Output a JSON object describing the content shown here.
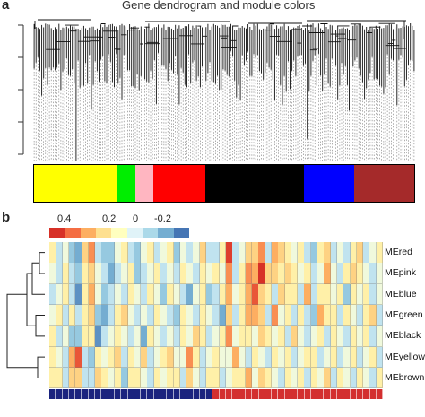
{
  "panel_a": {
    "label": "a",
    "title": "Gene dendrogram and module colors",
    "modules": [
      {
        "name": "yellow",
        "color": "#ffff00",
        "width_frac": 0.258
      },
      {
        "name": "green",
        "color": "#00ee00",
        "width_frac": 0.055
      },
      {
        "name": "pink",
        "color": "#ffb6c1",
        "width_frac": 0.055
      },
      {
        "name": "red",
        "color": "#ff0000",
        "width_frac": 0.161
      },
      {
        "name": "black",
        "color": "#000000",
        "width_frac": 0.306
      },
      {
        "name": "blue",
        "color": "#0000ff",
        "width_frac": 0.155
      },
      {
        "name": "brown",
        "color": "#a52a2a",
        "width_frac": 0.186
      }
    ]
  },
  "panel_b": {
    "label": "b",
    "color_key": {
      "tick_labels": [
        "0.4",
        "0.2",
        "0",
        "-0.2"
      ],
      "colors": [
        "#d73027",
        "#f46d43",
        "#fdae61",
        "#fee090",
        "#ffffbf",
        "#e0f3f8",
        "#abd9e9",
        "#74add1",
        "#4575b4"
      ]
    },
    "row_labels": [
      "MEred",
      "MEpink",
      "MEblue",
      "MEgreen",
      "MEblack",
      "MEyellow",
      "MEbrown"
    ],
    "sample_groups": [
      {
        "color": "#1a237e",
        "count": 25
      },
      {
        "color": "#d32f2f",
        "count": 26
      }
    ]
  },
  "chart_data": {
    "type": "heatmap",
    "title": "",
    "rows": [
      "MEred",
      "MEpink",
      "MEblue",
      "MEgreen",
      "MEblack",
      "MEyellow",
      "MEbrown"
    ],
    "n_columns": 51,
    "value_range": [
      -0.3,
      0.45
    ],
    "values": [
      [
        0.05,
        -0.05,
        0.0,
        -0.1,
        -0.15,
        0.1,
        0.2,
        -0.05,
        -0.1,
        -0.1,
        0.0,
        0.05,
        -0.05,
        -0.1,
        0.0,
        0.05,
        -0.05,
        0.0,
        0.05,
        -0.1,
        0.0,
        -0.05,
        0.0,
        0.1,
        -0.05,
        -0.05,
        0.05,
        0.35,
        -0.05,
        0.0,
        0.1,
        0.1,
        0.2,
        -0.05,
        0.15,
        0.1,
        0.05,
        0.0,
        0.05,
        -0.05,
        -0.1,
        0.05,
        0.1,
        -0.05,
        0.0,
        -0.05,
        0.05,
        0.1,
        -0.05,
        0.0,
        0.05
      ],
      [
        0.0,
        -0.05,
        0.05,
        -0.05,
        -0.1,
        0.05,
        0.1,
        0.0,
        -0.05,
        -0.15,
        -0.05,
        0.0,
        0.05,
        -0.1,
        -0.05,
        0.0,
        0.05,
        -0.05,
        0.0,
        -0.05,
        0.05,
        0.0,
        -0.05,
        0.05,
        0.0,
        0.05,
        0.0,
        0.2,
        -0.05,
        0.05,
        0.2,
        0.15,
        0.4,
        0.1,
        0.1,
        0.05,
        0.1,
        0.05,
        0.0,
        0.05,
        -0.05,
        0.0,
        0.15,
        0.0,
        -0.05,
        0.05,
        0.1,
        0.05,
        0.0,
        -0.05,
        0.0
      ],
      [
        -0.05,
        0.0,
        0.05,
        -0.05,
        -0.2,
        0.05,
        0.15,
        0.0,
        -0.1,
        -0.05,
        0.0,
        -0.05,
        0.05,
        0.0,
        -0.05,
        0.05,
        0.0,
        -0.1,
        0.05,
        0.0,
        -0.05,
        -0.15,
        0.0,
        0.05,
        -0.1,
        -0.05,
        0.05,
        0.15,
        0.0,
        0.05,
        0.15,
        0.3,
        0.1,
        0.05,
        -0.05,
        0.1,
        0.05,
        0.05,
        -0.05,
        0.15,
        -0.05,
        0.05,
        0.05,
        0.0,
        0.05,
        -0.1,
        0.05,
        0.0,
        0.05,
        -0.05,
        0.0
      ],
      [
        0.0,
        0.05,
        -0.05,
        0.05,
        -0.05,
        0.05,
        0.1,
        -0.1,
        -0.15,
        -0.05,
        0.05,
        0.1,
        0.0,
        -0.05,
        0.0,
        -0.05,
        0.05,
        0.0,
        -0.05,
        -0.1,
        0.05,
        0.0,
        -0.05,
        0.05,
        0.0,
        -0.05,
        -0.15,
        0.1,
        -0.05,
        0.05,
        0.15,
        0.15,
        0.1,
        -0.05,
        0.2,
        0.0,
        0.05,
        -0.05,
        0.05,
        -0.05,
        -0.1,
        0.15,
        0.05,
        0.05,
        -0.05,
        0.05,
        0.0,
        -0.05,
        0.05,
        0.1,
        -0.05
      ],
      [
        0.05,
        -0.05,
        0.0,
        -0.1,
        -0.1,
        0.05,
        0.05,
        -0.2,
        -0.05,
        0.0,
        0.05,
        0.0,
        -0.05,
        0.0,
        -0.15,
        0.05,
        0.0,
        -0.05,
        0.0,
        -0.05,
        0.05,
        0.0,
        0.1,
        0.05,
        -0.05,
        0.0,
        0.05,
        0.2,
        0.0,
        0.05,
        0.05,
        0.0,
        0.1,
        0.05,
        0.0,
        0.05,
        -0.05,
        0.1,
        0.0,
        -0.05,
        0.0,
        0.05,
        -0.05,
        0.05,
        0.0,
        -0.05,
        0.05,
        0.0,
        0.05,
        -0.05,
        0.0
      ],
      [
        0.05,
        0.0,
        -0.05,
        0.15,
        0.3,
        -0.05,
        -0.1,
        0.05,
        0.0,
        0.05,
        0.1,
        -0.05,
        0.05,
        0.0,
        0.1,
        -0.05,
        0.0,
        0.05,
        0.1,
        0.0,
        0.0,
        0.2,
        0.05,
        -0.05,
        0.0,
        0.05,
        0.0,
        0.0,
        0.15,
        0.0,
        -0.05,
        0.05,
        0.0,
        -0.05,
        0.05,
        0.0,
        0.05,
        -0.05,
        0.0,
        0.05,
        0.05,
        -0.05,
        0.0,
        0.05,
        -0.05,
        0.0,
        0.05,
        -0.05,
        0.0,
        0.05,
        -0.05
      ],
      [
        0.05,
        0.05,
        -0.05,
        0.1,
        0.1,
        -0.05,
        -0.05,
        0.1,
        0.05,
        0.0,
        0.05,
        -0.1,
        0.05,
        0.05,
        0.0,
        -0.05,
        0.05,
        0.0,
        0.05,
        0.05,
        -0.05,
        0.1,
        0.0,
        -0.05,
        0.05,
        0.05,
        -0.05,
        0.0,
        0.05,
        0.05,
        0.15,
        0.0,
        0.1,
        0.05,
        0.0,
        -0.05,
        0.05,
        0.0,
        0.05,
        -0.05,
        0.05,
        0.0,
        0.1,
        -0.05,
        0.05,
        0.0,
        -0.05,
        0.05,
        0.0,
        -0.05,
        0.05
      ]
    ]
  }
}
